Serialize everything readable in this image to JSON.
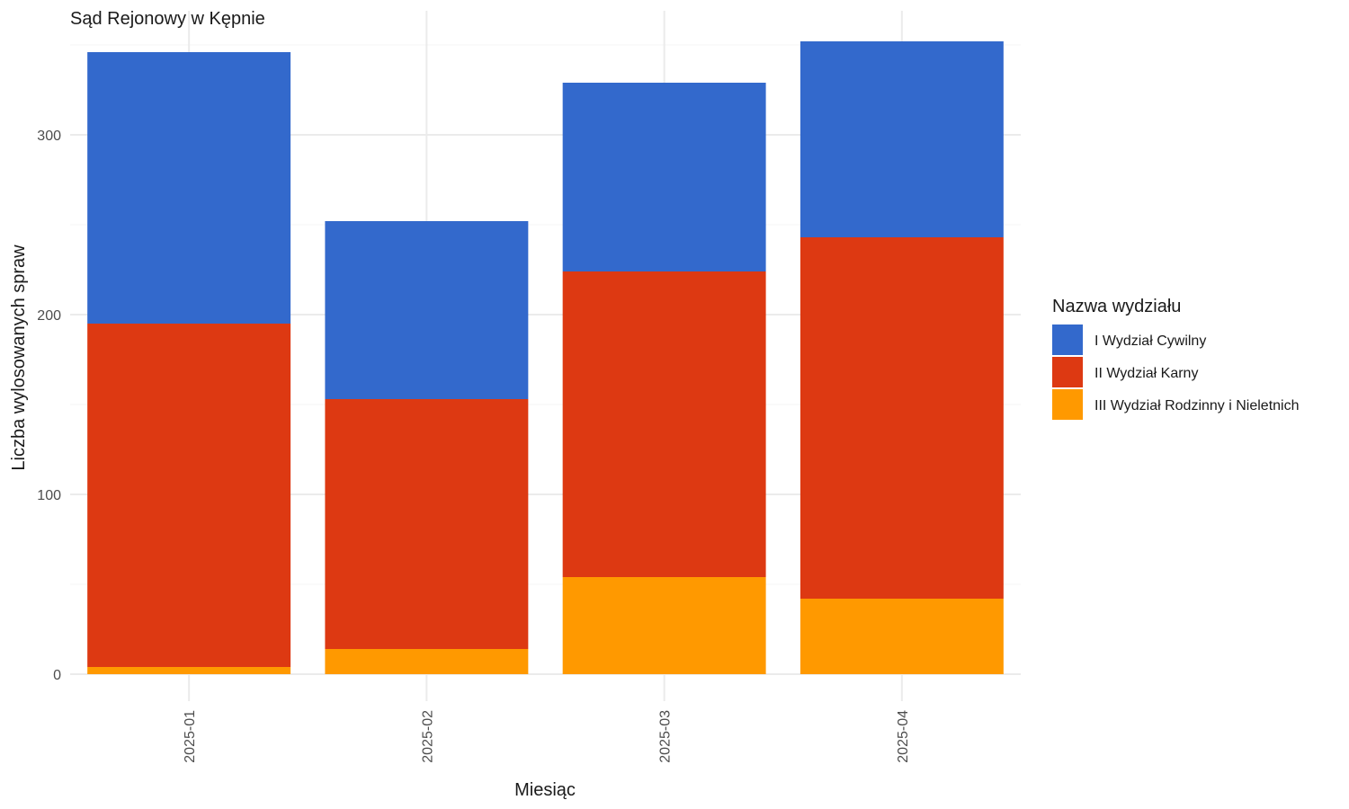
{
  "chart_data": {
    "type": "bar",
    "stacked": true,
    "title": "Sąd Rejonowy w Kępnie",
    "xlabel": "Miesiąc",
    "ylabel": "Liczba wylosowanych spraw",
    "categories": [
      "2025-01",
      "2025-02",
      "2025-03",
      "2025-04"
    ],
    "ylim": [
      0,
      370
    ],
    "yticks": [
      0,
      100,
      200,
      300
    ],
    "grid": true,
    "legend": {
      "title": "Nazwa wydziału",
      "position": "right"
    },
    "series": [
      {
        "name": "I Wydział Cywilny",
        "color": "#3369CC",
        "values": [
          151,
          99,
          105,
          109
        ]
      },
      {
        "name": "II Wydział Karny",
        "color": "#DD3912",
        "values": [
          191,
          139,
          170,
          201
        ]
      },
      {
        "name": "III Wydział Rodzinny i Nieletnich",
        "color": "#FF9900",
        "values": [
          4,
          14,
          54,
          42
        ]
      }
    ]
  }
}
